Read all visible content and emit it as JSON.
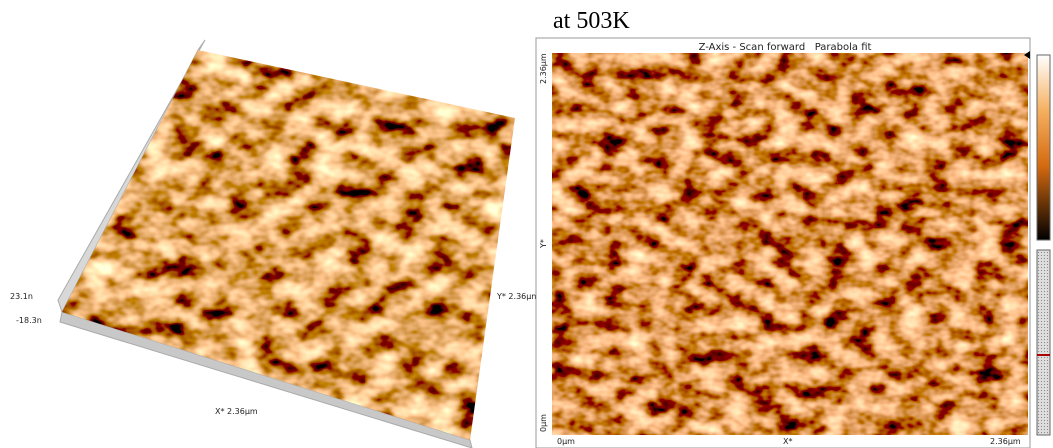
{
  "title": "at 503K",
  "left_view": {
    "z_max": "23.1n",
    "z_min": "-18.3n",
    "x_label": "X* 2.36µm",
    "y_label": "Y* 2.36µm"
  },
  "right_view": {
    "header": "Z-Axis - Scan forward   Parabola fit",
    "y_top": "2.36µm",
    "y_mid": "Y*",
    "y_bottom": "0µm",
    "x_start": "0µm",
    "x_mid": "X*",
    "x_end": "2.36µm"
  }
}
